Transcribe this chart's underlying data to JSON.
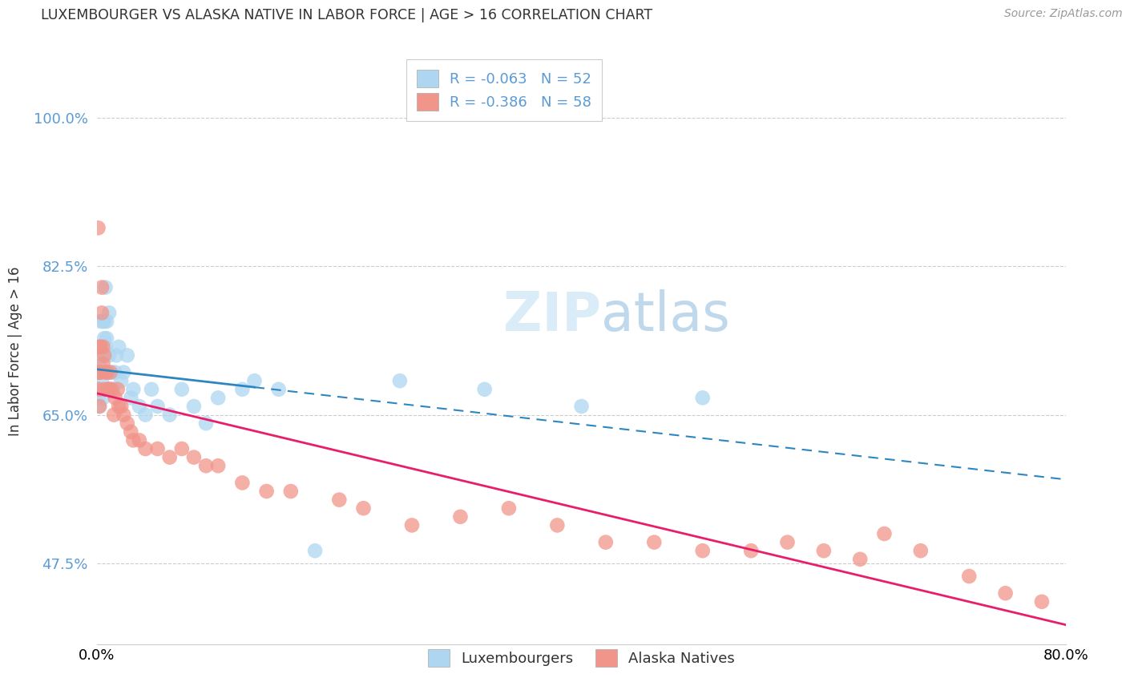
{
  "title": "LUXEMBOURGER VS ALASKA NATIVE IN LABOR FORCE | AGE > 16 CORRELATION CHART",
  "source": "Source: ZipAtlas.com",
  "ylabel": "In Labor Force | Age > 16",
  "legend_label1": "Luxembourgers",
  "legend_label2": "Alaska Natives",
  "R1": -0.063,
  "N1": 52,
  "R2": -0.386,
  "N2": 58,
  "color_blue": "#AED6F1",
  "color_pink": "#F1948A",
  "line_blue": "#2E86C1",
  "line_pink": "#E91E6B",
  "xlim": [
    0.0,
    0.8
  ],
  "ylim": [
    0.38,
    1.07
  ],
  "ytick_labeled": [
    0.475,
    0.65,
    0.825,
    1.0
  ],
  "ytick_labels": [
    "47.5%",
    "65.0%",
    "82.5%",
    "100.0%"
  ],
  "blue_x": [
    0.001,
    0.001,
    0.001,
    0.001,
    0.002,
    0.002,
    0.002,
    0.002,
    0.003,
    0.003,
    0.003,
    0.004,
    0.004,
    0.005,
    0.005,
    0.006,
    0.006,
    0.007,
    0.007,
    0.008,
    0.008,
    0.009,
    0.01,
    0.01,
    0.011,
    0.012,
    0.013,
    0.015,
    0.016,
    0.018,
    0.02,
    0.022,
    0.025,
    0.028,
    0.03,
    0.035,
    0.04,
    0.045,
    0.05,
    0.06,
    0.07,
    0.08,
    0.09,
    0.1,
    0.12,
    0.13,
    0.15,
    0.18,
    0.25,
    0.32,
    0.4,
    0.5
  ],
  "blue_y": [
    0.67,
    0.68,
    0.72,
    0.73,
    0.66,
    0.68,
    0.7,
    0.71,
    0.68,
    0.7,
    0.76,
    0.69,
    0.72,
    0.67,
    0.76,
    0.76,
    0.74,
    0.73,
    0.8,
    0.74,
    0.76,
    0.7,
    0.72,
    0.77,
    0.68,
    0.7,
    0.68,
    0.7,
    0.72,
    0.73,
    0.69,
    0.7,
    0.72,
    0.67,
    0.68,
    0.66,
    0.65,
    0.68,
    0.66,
    0.65,
    0.68,
    0.66,
    0.64,
    0.67,
    0.68,
    0.69,
    0.68,
    0.49,
    0.69,
    0.68,
    0.66,
    0.67
  ],
  "pink_x": [
    0.001,
    0.001,
    0.001,
    0.002,
    0.002,
    0.002,
    0.003,
    0.003,
    0.004,
    0.004,
    0.005,
    0.005,
    0.006,
    0.006,
    0.007,
    0.008,
    0.009,
    0.01,
    0.011,
    0.012,
    0.014,
    0.015,
    0.017,
    0.018,
    0.02,
    0.022,
    0.025,
    0.028,
    0.03,
    0.035,
    0.04,
    0.05,
    0.06,
    0.07,
    0.08,
    0.09,
    0.1,
    0.12,
    0.14,
    0.16,
    0.2,
    0.22,
    0.26,
    0.3,
    0.34,
    0.38,
    0.42,
    0.46,
    0.5,
    0.54,
    0.57,
    0.6,
    0.63,
    0.65,
    0.68,
    0.72,
    0.75,
    0.78
  ],
  "pink_y": [
    0.87,
    0.68,
    0.7,
    0.66,
    0.7,
    0.73,
    0.7,
    0.73,
    0.77,
    0.8,
    0.71,
    0.73,
    0.68,
    0.72,
    0.7,
    0.7,
    0.68,
    0.68,
    0.7,
    0.68,
    0.65,
    0.67,
    0.68,
    0.66,
    0.66,
    0.65,
    0.64,
    0.63,
    0.62,
    0.62,
    0.61,
    0.61,
    0.6,
    0.61,
    0.6,
    0.59,
    0.59,
    0.57,
    0.56,
    0.56,
    0.55,
    0.54,
    0.52,
    0.53,
    0.54,
    0.52,
    0.5,
    0.5,
    0.49,
    0.49,
    0.5,
    0.49,
    0.48,
    0.51,
    0.49,
    0.46,
    0.44,
    0.43
  ]
}
